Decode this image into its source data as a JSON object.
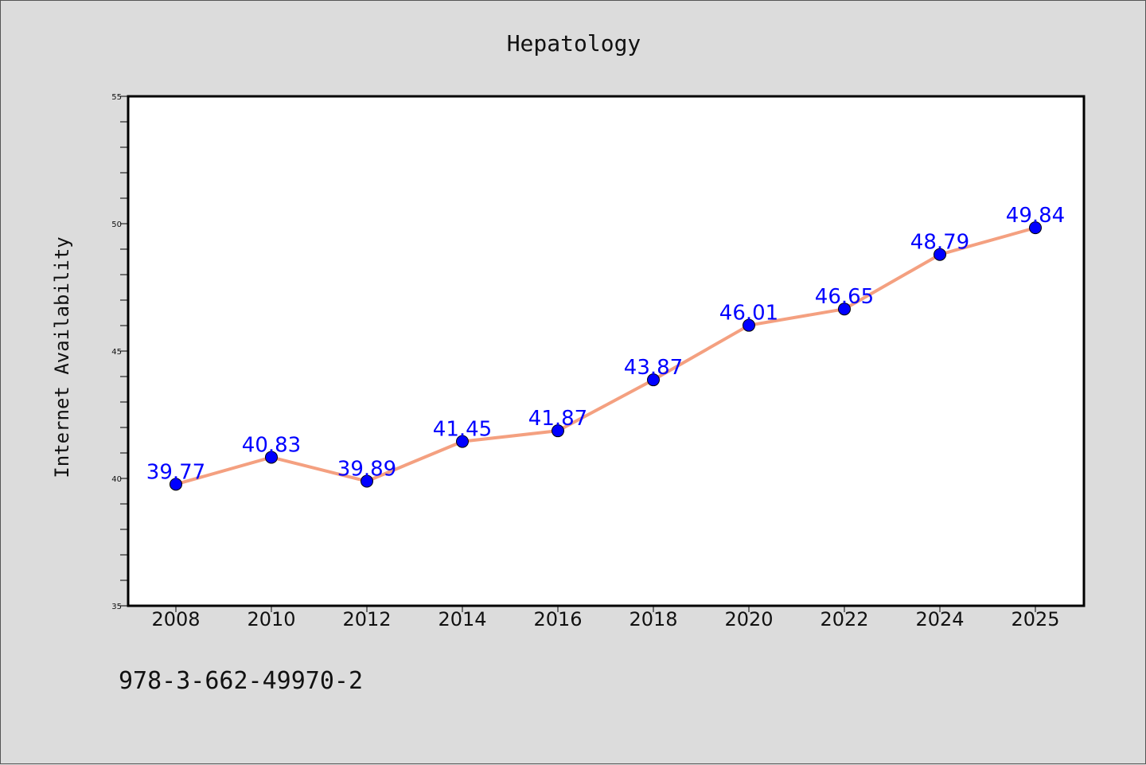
{
  "chart_data": {
    "type": "line",
    "title": "Hepatology",
    "xlabel": "",
    "ylabel": "Internet Availability",
    "categories": [
      "2008",
      "2010",
      "2012",
      "2014",
      "2016",
      "2018",
      "2020",
      "2022",
      "2024",
      "2025"
    ],
    "series": [
      {
        "values": [
          39.77,
          40.83,
          39.89,
          41.45,
          41.87,
          43.87,
          46.01,
          46.65,
          48.79,
          49.84
        ],
        "data_labels": [
          "39.77",
          "40.83",
          "39.89",
          "41.45",
          "41.87",
          "43.87",
          "46.01",
          "46.65",
          "48.79",
          "49.84"
        ],
        "line_color": "#f4a080",
        "marker_color": "#0000ff"
      }
    ],
    "ylim": [
      35,
      55
    ],
    "yticks": [
      "35",
      "40",
      "45",
      "50",
      "55"
    ],
    "grid": false,
    "legend": "none"
  },
  "footer": {
    "isbn": "978-3-662-49970-2"
  },
  "colors": {
    "background": "#dcdcdc",
    "plot_background": "#ffffff",
    "line": "#f4a080",
    "marker": "#0000ff",
    "data_label": "#0000ff"
  }
}
